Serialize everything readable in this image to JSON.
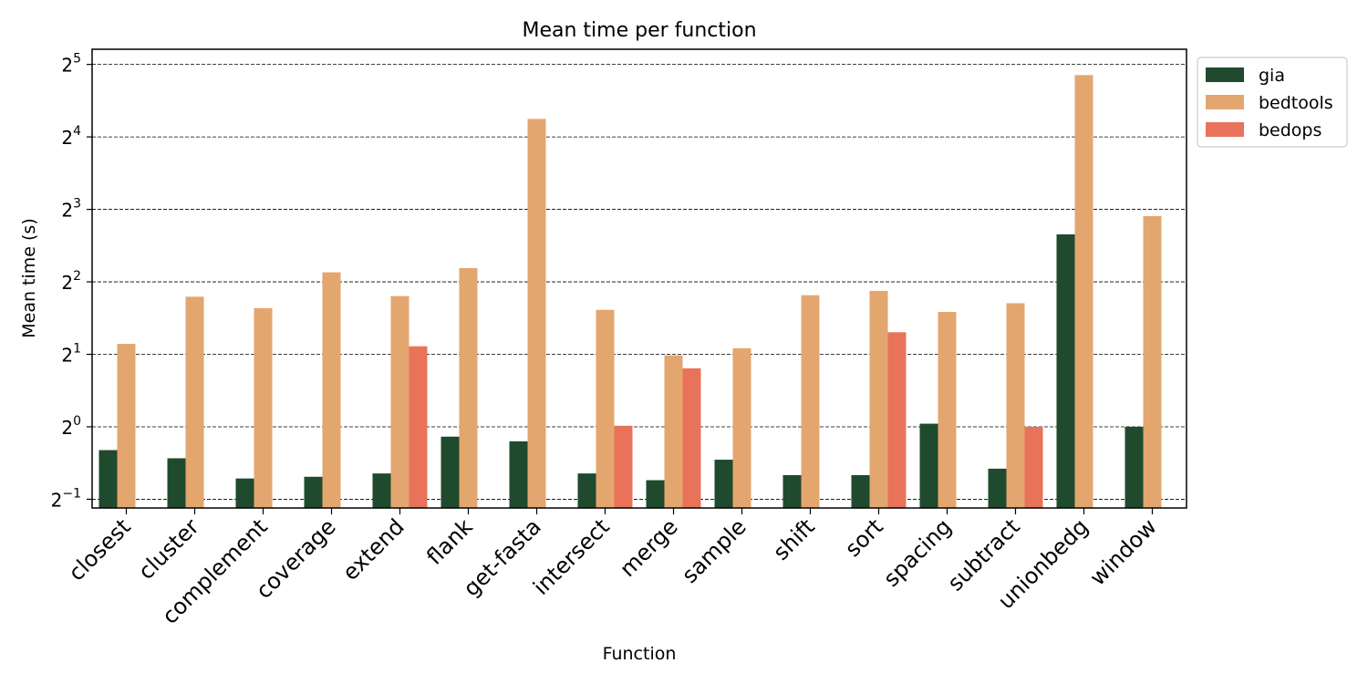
{
  "chart_data": {
    "type": "bar",
    "title": "Mean time per function",
    "xlabel": "Function",
    "ylabel": "Mean time (s)",
    "yscale": "log2",
    "ylim": [
      0.46,
      37
    ],
    "yticks": [
      {
        "value": 0.5,
        "base": "2",
        "exp": "−1"
      },
      {
        "value": 1,
        "base": "2",
        "exp": "0"
      },
      {
        "value": 2,
        "base": "2",
        "exp": "1"
      },
      {
        "value": 4,
        "base": "2",
        "exp": "2"
      },
      {
        "value": 8,
        "base": "2",
        "exp": "3"
      },
      {
        "value": 16,
        "base": "2",
        "exp": "4"
      },
      {
        "value": 32,
        "base": "2",
        "exp": "5"
      }
    ],
    "grid": "horizontal-dashed",
    "legend_position": "outside-top-right",
    "categories": [
      "closest",
      "cluster",
      "complement",
      "coverage",
      "extend",
      "flank",
      "get-fasta",
      "intersect",
      "merge",
      "sample",
      "shift",
      "sort",
      "spacing",
      "subtract",
      "unionbedg",
      "window"
    ],
    "series": [
      {
        "name": "gia",
        "color": "#1f4a2e",
        "values": [
          0.8,
          0.74,
          0.61,
          0.62,
          0.64,
          0.91,
          0.87,
          0.64,
          0.6,
          0.73,
          0.63,
          0.63,
          1.03,
          0.67,
          6.3,
          1.0
        ]
      },
      {
        "name": "bedtools",
        "color": "#e3a66f",
        "values": [
          2.21,
          3.47,
          3.11,
          4.38,
          3.49,
          4.56,
          19.0,
          3.06,
          1.98,
          2.12,
          3.52,
          3.67,
          3.0,
          3.26,
          28.9,
          7.5
        ]
      },
      {
        "name": "bedops",
        "color": "#e8735a",
        "values": [
          null,
          null,
          null,
          null,
          2.16,
          null,
          null,
          1.01,
          1.75,
          null,
          null,
          2.47,
          null,
          1.0,
          null,
          null
        ]
      }
    ]
  }
}
